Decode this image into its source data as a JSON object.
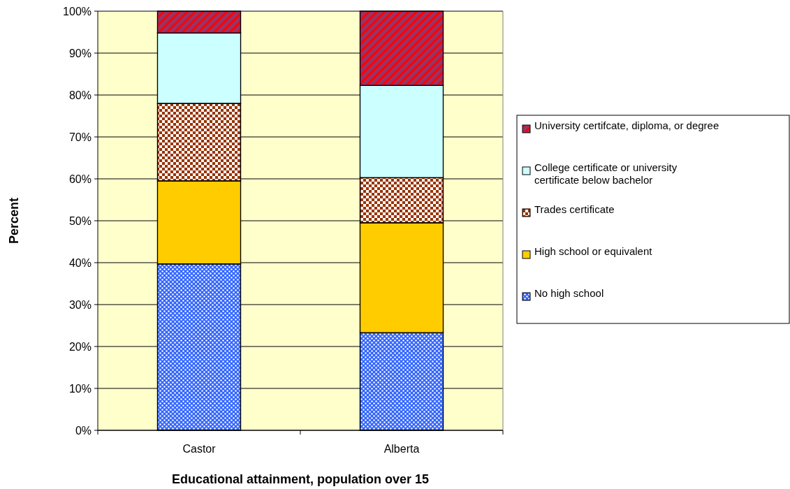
{
  "chart_data": {
    "type": "bar",
    "stacked": true,
    "xlabel": "Educational attainment, population over 15",
    "ylabel": "Percent",
    "categories": [
      "Castor",
      "Alberta"
    ],
    "series": [
      {
        "name": "No high school",
        "color": "#3366ff",
        "values": [
          39.7,
          23.3
        ]
      },
      {
        "name": "High school or equivalent",
        "color": "#ffcc00",
        "values": [
          19.8,
          26.2
        ]
      },
      {
        "name": "Trades certificate",
        "color": "#993300",
        "values": [
          18.5,
          10.8
        ]
      },
      {
        "name": "College certificate or university certificate below bachelor",
        "color": "#ccffff",
        "values": [
          16.8,
          22.0
        ]
      },
      {
        "name": "University certifcate, diploma, or degree",
        "color": "#993366",
        "values": [
          5.2,
          17.7
        ]
      }
    ],
    "ylim": [
      0,
      100
    ],
    "yticks": [
      {
        "value": 0,
        "label": "0%"
      },
      {
        "value": 10,
        "label": "10%"
      },
      {
        "value": 20,
        "label": "20%"
      },
      {
        "value": 30,
        "label": "30%"
      },
      {
        "value": 40,
        "label": "40%"
      },
      {
        "value": 50,
        "label": "50%"
      },
      {
        "value": 60,
        "label": "60%"
      },
      {
        "value": 70,
        "label": "70%"
      },
      {
        "value": 80,
        "label": "80%"
      },
      {
        "value": 90,
        "label": "90%"
      },
      {
        "value": 100,
        "label": "100%"
      }
    ],
    "grid": "y",
    "legend": "right"
  }
}
